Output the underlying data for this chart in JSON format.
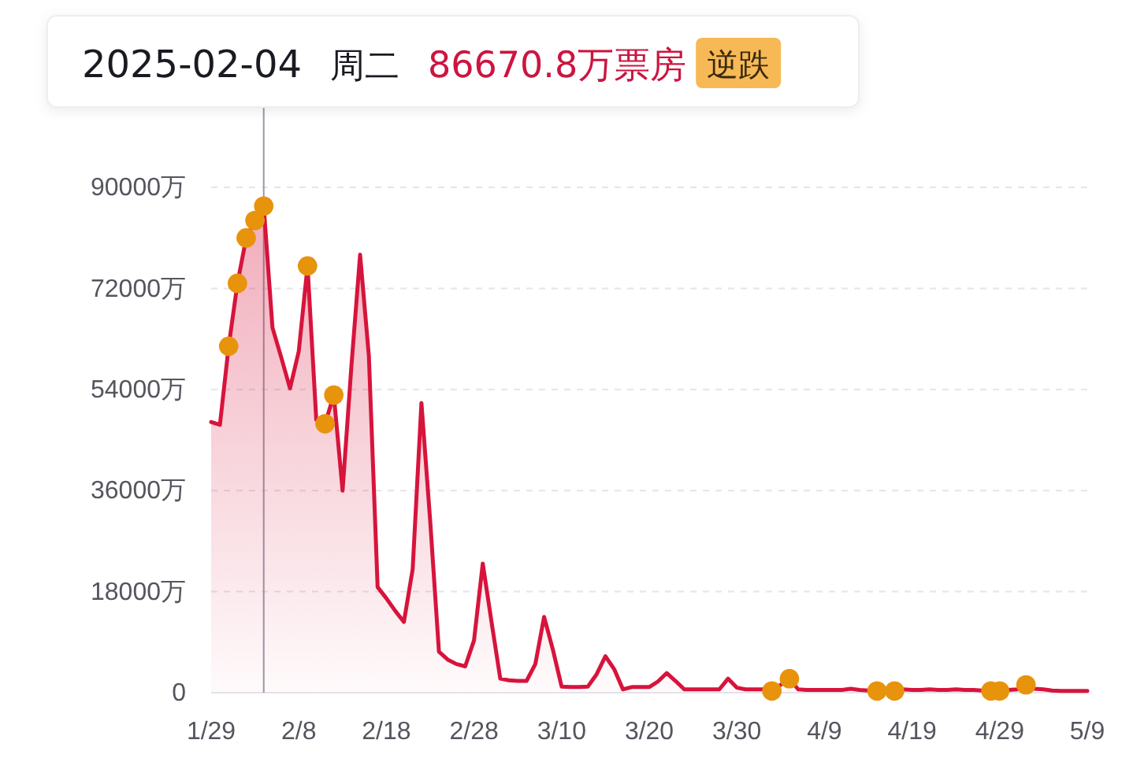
{
  "chart_data": {
    "type": "area",
    "title": "2025-02-04",
    "subtitle": "周二",
    "annotations": [
      "86670.8万票房",
      "逆跌"
    ],
    "x": [
      "2025-01-29",
      "2025-01-30",
      "2025-01-31",
      "2025-02-01",
      "2025-02-02",
      "2025-02-03",
      "2025-02-04",
      "2025-02-05",
      "2025-02-06",
      "2025-02-07",
      "2025-02-08",
      "2025-02-09",
      "2025-02-10",
      "2025-02-11",
      "2025-02-12",
      "2025-02-13",
      "2025-02-14",
      "2025-02-15",
      "2025-02-16",
      "2025-02-17",
      "2025-02-18",
      "2025-02-19",
      "2025-02-20",
      "2025-02-21",
      "2025-02-22",
      "2025-02-23",
      "2025-02-24",
      "2025-02-25",
      "2025-02-26",
      "2025-02-27",
      "2025-02-28",
      "2025-03-01",
      "2025-03-02",
      "2025-03-03",
      "2025-03-04",
      "2025-03-05",
      "2025-03-06",
      "2025-03-07",
      "2025-03-08",
      "2025-03-09",
      "2025-03-10",
      "2025-03-11",
      "2025-03-12",
      "2025-03-13",
      "2025-03-14",
      "2025-03-15",
      "2025-03-16",
      "2025-03-17",
      "2025-03-18",
      "2025-03-19",
      "2025-03-20",
      "2025-03-21",
      "2025-03-22",
      "2025-03-23",
      "2025-03-24",
      "2025-03-25",
      "2025-03-26",
      "2025-03-27",
      "2025-03-28",
      "2025-03-29",
      "2025-03-30",
      "2025-03-31",
      "2025-04-01",
      "2025-04-02",
      "2025-04-03",
      "2025-04-04",
      "2025-04-05",
      "2025-04-06",
      "2025-04-07",
      "2025-04-08",
      "2025-04-09",
      "2025-04-10",
      "2025-04-11",
      "2025-04-12",
      "2025-04-13",
      "2025-04-14",
      "2025-04-15",
      "2025-04-16",
      "2025-04-17",
      "2025-04-18",
      "2025-04-19",
      "2025-04-20",
      "2025-04-21",
      "2025-04-22",
      "2025-04-23",
      "2025-04-24",
      "2025-04-25",
      "2025-04-26",
      "2025-04-27",
      "2025-04-28",
      "2025-04-29",
      "2025-04-30",
      "2025-05-01",
      "2025-05-02",
      "2025-05-03",
      "2025-05-04",
      "2025-05-05",
      "2025-05-06",
      "2025-05-07",
      "2025-05-08",
      "2025-05-09"
    ],
    "series": [
      {
        "color": "#d7143c",
        "values": [
          48200,
          47700,
          61700,
          72900,
          81000,
          84100,
          86670.8,
          65000,
          59700,
          54200,
          60800,
          76000,
          48600,
          47900,
          53000,
          36000,
          58000,
          78000,
          60000,
          18800,
          16800,
          14600,
          12600,
          22000,
          51600,
          30600,
          7300,
          5900,
          5100,
          4700,
          9300,
          23000,
          12600,
          2500,
          2200,
          2100,
          2100,
          5100,
          13500,
          7700,
          1100,
          1000,
          1000,
          1100,
          3300,
          6500,
          4200,
          600,
          1000,
          1000,
          1000,
          2000,
          3500,
          2100,
          600,
          600,
          600,
          600,
          600,
          2500,
          900,
          600,
          600,
          600,
          300,
          1400,
          2500,
          600,
          500,
          500,
          500,
          500,
          500,
          700,
          500,
          400,
          300,
          400,
          300,
          600,
          500,
          500,
          600,
          500,
          500,
          600,
          500,
          500,
          400,
          300,
          300,
          500,
          600,
          1400,
          700,
          600,
          400,
          300,
          300,
          300,
          300
        ]
      },
      {
        "type": "scatter",
        "color": "#e8930c",
        "marker": "circle",
        "x": [
          "2025-01-31",
          "2025-02-01",
          "2025-02-02",
          "2025-02-03",
          "2025-02-04",
          "2025-02-09",
          "2025-02-11",
          "2025-02-12",
          "2025-04-03",
          "2025-04-05",
          "2025-04-15",
          "2025-04-17",
          "2025-04-28",
          "2025-04-29",
          "2025-05-02"
        ],
        "values": [
          61700,
          72900,
          81000,
          84100,
          86670.8,
          76000,
          47900,
          53000,
          300,
          2500,
          300,
          300,
          300,
          300,
          1400
        ]
      }
    ],
    "xlim": [
      "2025-01-29",
      "2025-05-09"
    ],
    "xticks": [
      {
        "value": "2025-01-29",
        "label": "1/29"
      },
      {
        "value": "2025-02-08",
        "label": "2/8"
      },
      {
        "value": "2025-02-18",
        "label": "2/18"
      },
      {
        "value": "2025-02-28",
        "label": "2/28"
      },
      {
        "value": "2025-03-10",
        "label": "3/10"
      },
      {
        "value": "2025-03-20",
        "label": "3/20"
      },
      {
        "value": "2025-03-30",
        "label": "3/30"
      },
      {
        "value": "2025-04-09",
        "label": "4/9"
      },
      {
        "value": "2025-04-19",
        "label": "4/19"
      },
      {
        "value": "2025-04-29",
        "label": "4/29"
      },
      {
        "value": "2025-05-09",
        "label": "5/9"
      }
    ],
    "ylim": [
      0,
      90000
    ],
    "yticks": [
      0,
      {
        "value": 18000,
        "label": "18000万"
      },
      {
        "value": 36000,
        "label": "36000万"
      },
      {
        "value": 54000,
        "label": "54000万"
      },
      {
        "value": 72000,
        "label": "72000万"
      },
      {
        "value": 90000,
        "label": "90000万"
      }
    ],
    "grid": "y",
    "ref_lines": [
      {
        "axis": "x",
        "value": "2025-02-04",
        "color": "#9a9aa6"
      }
    ]
  }
}
